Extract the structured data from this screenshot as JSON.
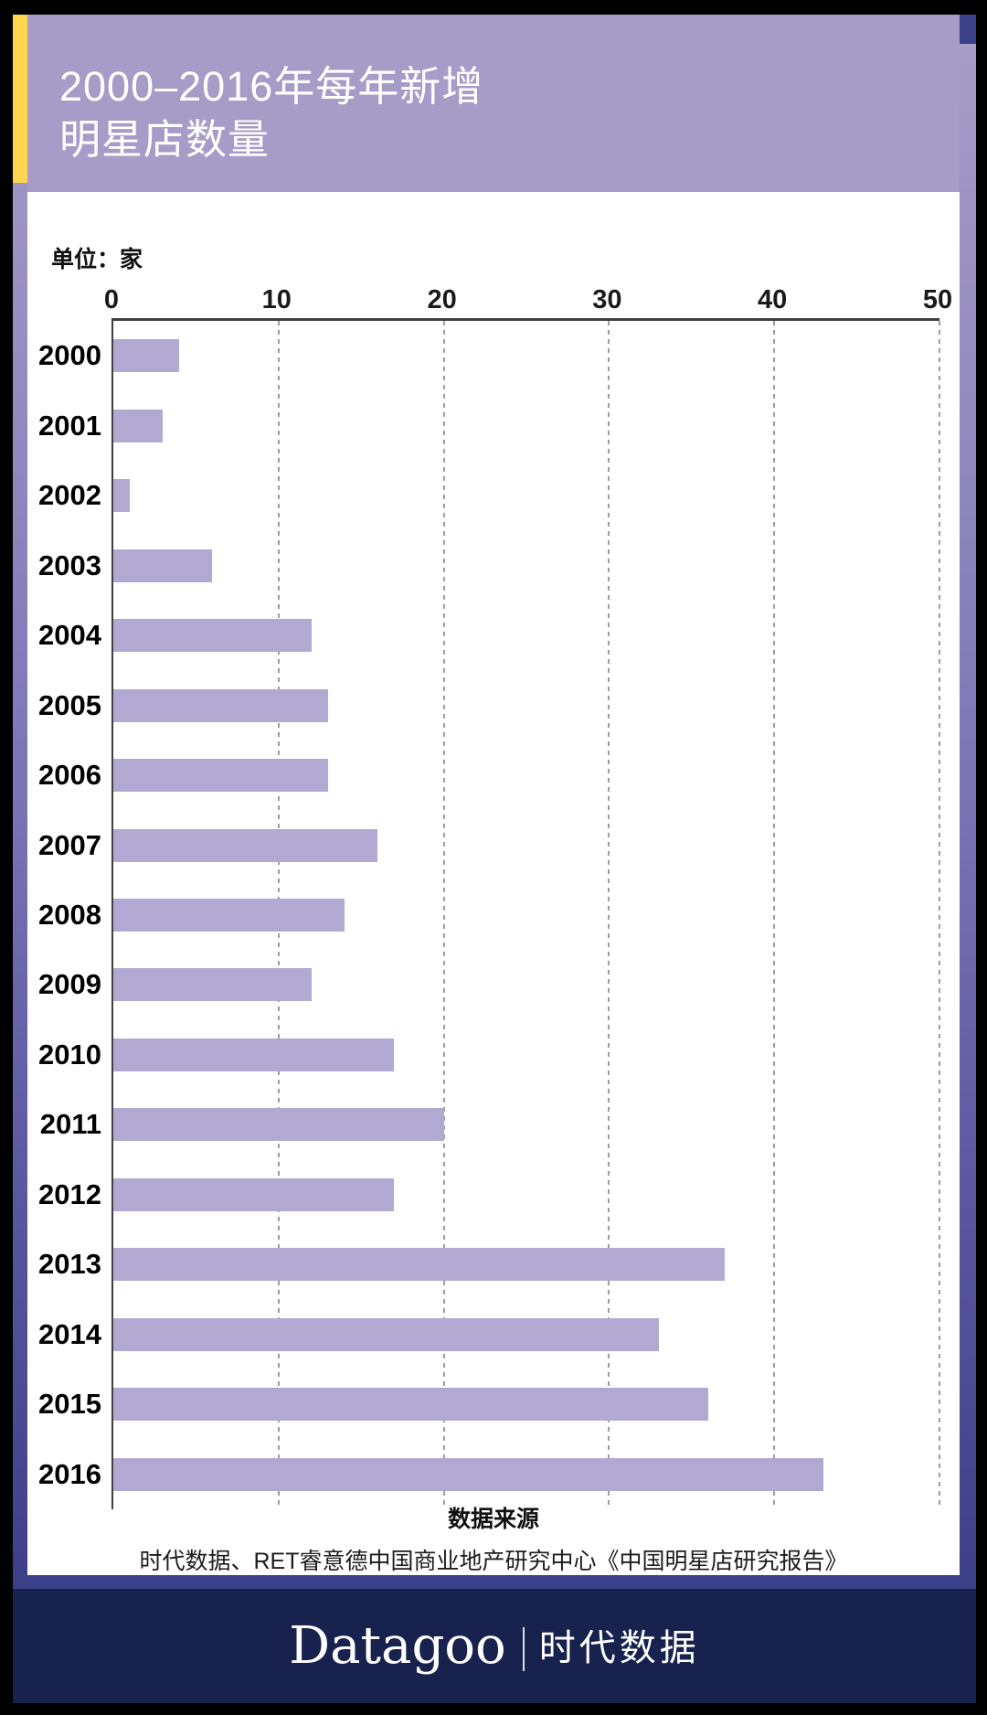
{
  "header": {
    "title_line1": "2000–2016年每年新增",
    "title_line2": "明星店数量"
  },
  "unit_label": "单位：家",
  "chart_data": {
    "type": "bar",
    "orientation": "horizontal",
    "title": "2000–2016年每年新增明星店数量",
    "unit": "家",
    "categories": [
      "2000",
      "2001",
      "2002",
      "2003",
      "2004",
      "2005",
      "2006",
      "2007",
      "2008",
      "2009",
      "2010",
      "2011",
      "2012",
      "2013",
      "2014",
      "2015",
      "2016"
    ],
    "values": [
      4,
      3,
      1,
      6,
      12,
      13,
      13,
      16,
      14,
      12,
      17,
      20,
      17,
      37,
      33,
      36,
      43
    ],
    "xlabel": "",
    "ylabel": "",
    "xlim": [
      0,
      50
    ],
    "xticks": [
      0,
      10,
      20,
      30,
      40,
      50
    ],
    "grid": "dashed-vertical",
    "legend": "none",
    "bar_color": "#b2a9d2"
  },
  "source": {
    "heading": "数据来源",
    "text": "时代数据、RET睿意德中国商业地产研究中心《中国明星店研究报告》"
  },
  "footer": {
    "logo_latin": "Datagoo",
    "logo_cjk": "时代数据"
  },
  "colors": {
    "header_purple": "#a79cc7",
    "bar_purple": "#b2a9d2",
    "accent_yellow": "#fbd64e",
    "accent_indigo": "#3c4089",
    "footer_navy": "#17234e",
    "frame_black": "#000000"
  }
}
